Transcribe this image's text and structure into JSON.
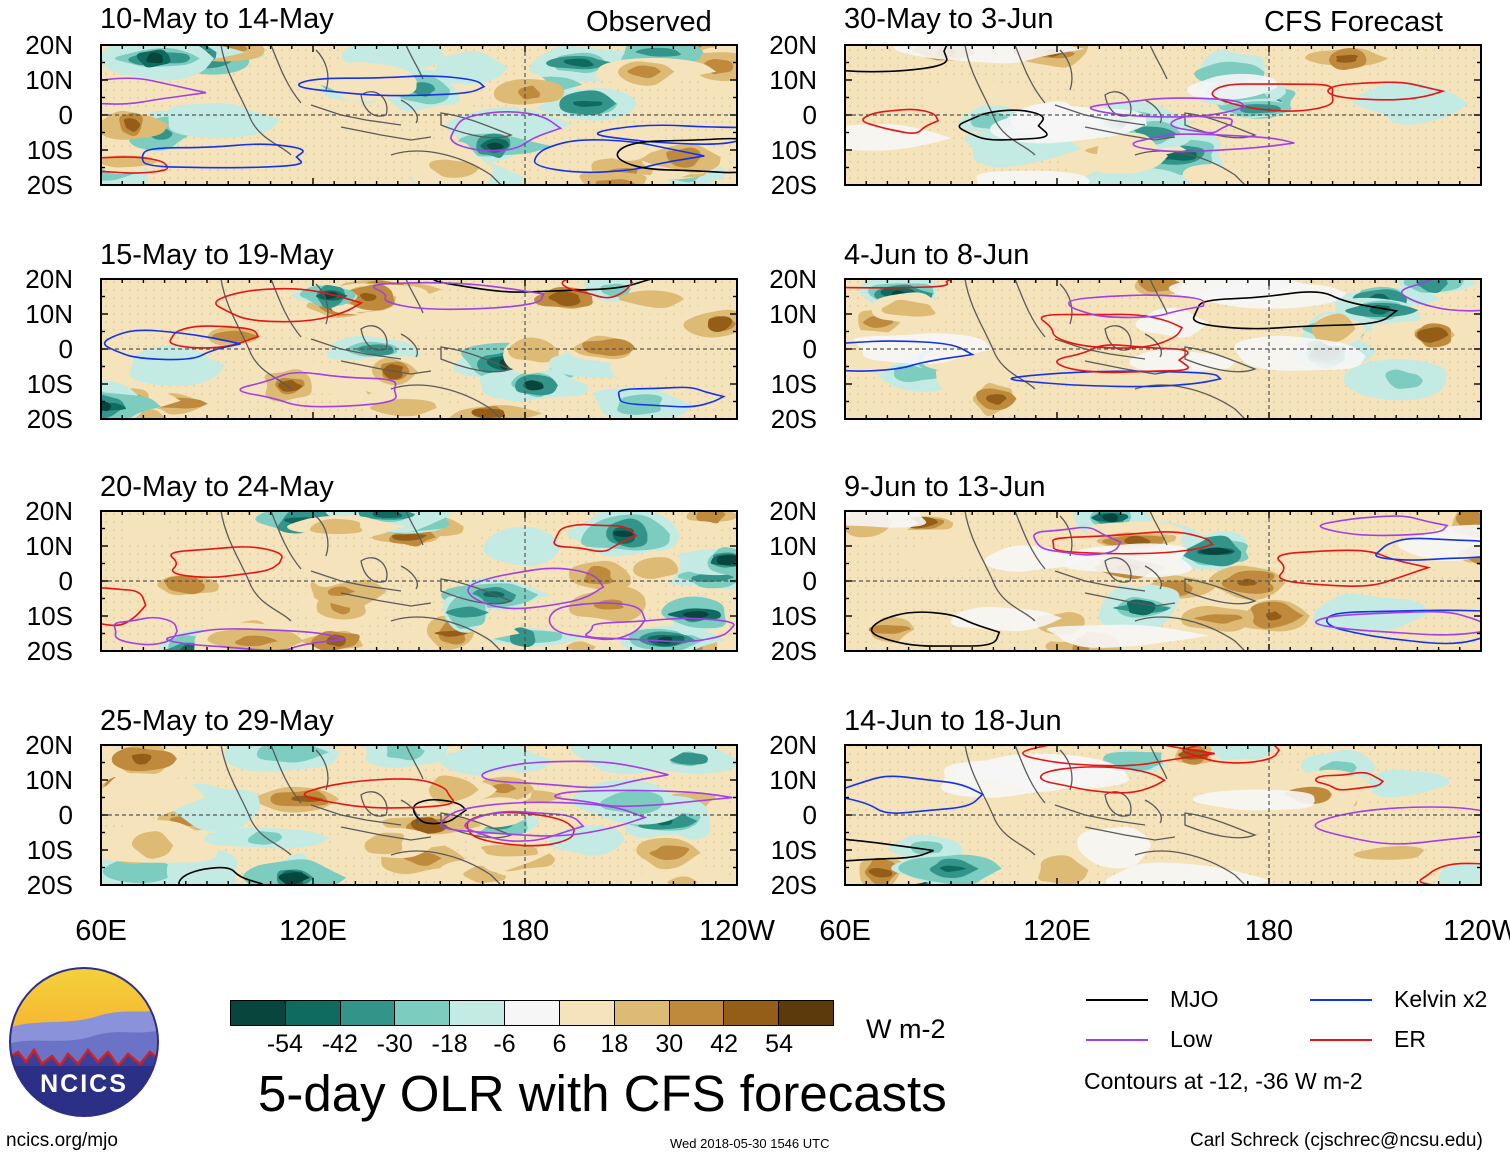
{
  "figure": {
    "title": "5-day OLR with CFS forecasts",
    "observed_label": "Observed",
    "forecast_label": "CFS Forecast",
    "site_url": "ncics.org/mjo",
    "timestamp": "Wed 2018-05-30 1546 UTC",
    "author": "Carl Schreck (cjschrec@ncsu.edu)",
    "logo_text": "NCICS"
  },
  "panels": {
    "observed": [
      {
        "label": "10-May to 14-May"
      },
      {
        "label": "15-May to 19-May"
      },
      {
        "label": "20-May to 24-May"
      },
      {
        "label": "25-May to 29-May"
      }
    ],
    "forecast": [
      {
        "label": "30-May to 3-Jun"
      },
      {
        "label": "4-Jun to 8-Jun"
      },
      {
        "label": "9-Jun to 13-Jun"
      },
      {
        "label": "14-Jun to 18-Jun"
      }
    ]
  },
  "axes": {
    "lat_labels": [
      "20N",
      "10N",
      "0",
      "10S",
      "20S"
    ],
    "lon_labels": [
      "60E",
      "120E",
      "180",
      "120W"
    ]
  },
  "colorbar": {
    "ticks": [
      "-54",
      "-42",
      "-30",
      "-18",
      "-6",
      "6",
      "18",
      "30",
      "42",
      "54"
    ],
    "units": "W m-2",
    "colors": [
      "#08453d",
      "#0f6b5f",
      "#33948a",
      "#7ccdbf",
      "#c3ebe3",
      "#f6f6f6",
      "#f5e3bb",
      "#ddbb75",
      "#bf8a3c",
      "#955e18",
      "#5c3a0c"
    ]
  },
  "legend": {
    "items": [
      {
        "label": "MJO",
        "color": "#000000"
      },
      {
        "label": "Kelvin x2",
        "color": "#1433e6"
      },
      {
        "label": "Low",
        "color": "#a040e6"
      },
      {
        "label": "ER",
        "color": "#e61414"
      }
    ],
    "note": "Contours at -12, -36 W m-2"
  }
}
